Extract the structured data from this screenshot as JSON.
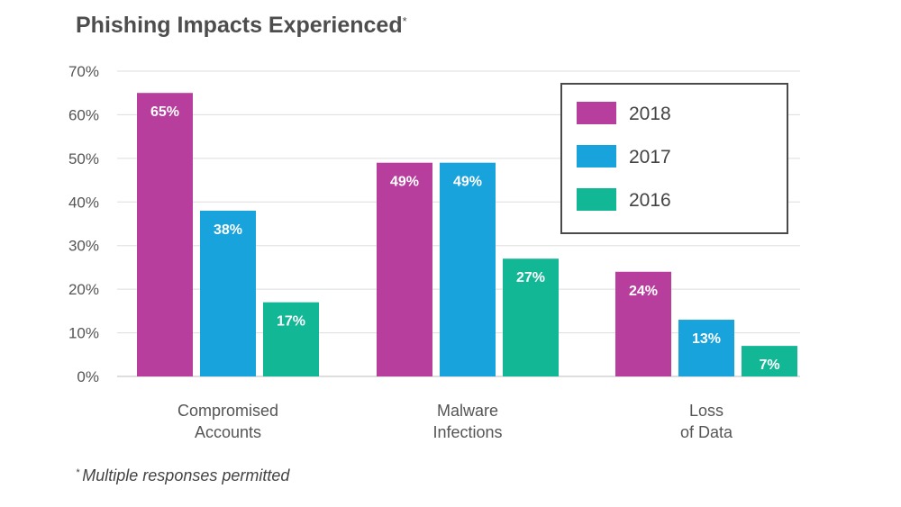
{
  "chart_data": {
    "type": "bar",
    "title": "Phishing Impacts Experienced",
    "title_mark": "*",
    "categories": [
      "Compromised Accounts",
      "Malware Infections",
      "Loss of Data"
    ],
    "category_lines": [
      [
        "Compromised",
        "Accounts"
      ],
      [
        "Malware",
        "Infections"
      ],
      [
        "Loss",
        "of Data"
      ]
    ],
    "series": [
      {
        "name": "2018",
        "color": "#b83e9e",
        "values": [
          65,
          49,
          24
        ]
      },
      {
        "name": "2017",
        "color": "#18a3dd",
        "values": [
          38,
          49,
          13
        ]
      },
      {
        "name": "2016",
        "color": "#12b796",
        "values": [
          17,
          27,
          7
        ]
      }
    ],
    "data_labels": [
      [
        "65%",
        "49%",
        "24%"
      ],
      [
        "38%",
        "49%",
        "13%"
      ],
      [
        "17%",
        "27%",
        "7%"
      ]
    ],
    "yticks": [
      "0%",
      "10%",
      "20%",
      "30%",
      "40%",
      "50%",
      "60%",
      "70%"
    ],
    "ylim": [
      0,
      70
    ],
    "grid": true,
    "legend_position": "top-right"
  },
  "footnote": {
    "mark": "*",
    "text": "Multiple responses permitted"
  }
}
